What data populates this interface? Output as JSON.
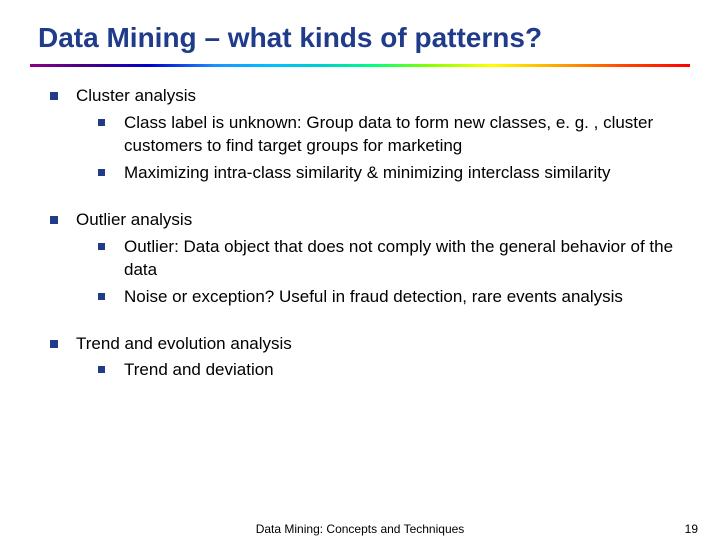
{
  "title": "Data Mining – what kinds of patterns?",
  "sections": [
    {
      "heading": "Cluster analysis",
      "items": [
        "Class label is unknown: Group data to form new classes, e. g. , cluster customers to find target groups for marketing",
        "Maximizing intra-class similarity & minimizing interclass similarity"
      ]
    },
    {
      "heading": "Outlier analysis",
      "items": [
        "Outlier: Data object that does not comply with the general behavior of the data",
        "Noise or exception? Useful in fraud detection, rare events analysis"
      ]
    },
    {
      "heading": "Trend and evolution analysis",
      "items": [
        "Trend and deviation"
      ]
    }
  ],
  "footer": {
    "center": "Data Mining: Concepts and Techniques",
    "page": "19"
  },
  "colors": {
    "title_color": "#1f3b8a",
    "bullet_color": "#1f3b8a",
    "background": "#ffffff"
  }
}
